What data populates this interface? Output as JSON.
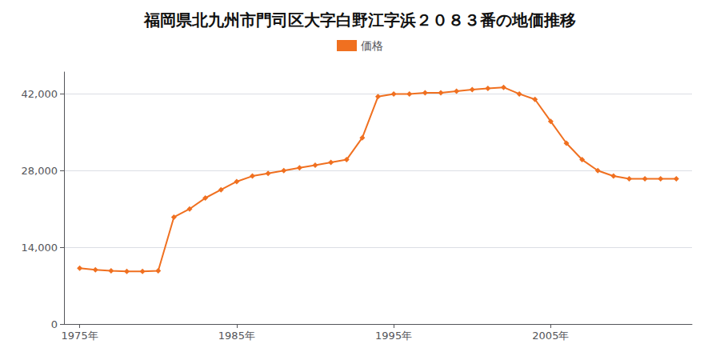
{
  "chart_data": {
    "type": "line",
    "title": "福岡県北九州市門司区大字白野江字浜２０８３番の地価推移",
    "x": [
      1975,
      1976,
      1977,
      1978,
      1979,
      1980,
      1981,
      1982,
      1983,
      1984,
      1985,
      1986,
      1987,
      1988,
      1989,
      1990,
      1991,
      1992,
      1993,
      1994,
      1995,
      1996,
      1997,
      1998,
      1999,
      2000,
      2001,
      2002,
      2003,
      2004,
      2005,
      2006,
      2007,
      2008,
      2009,
      2010,
      2011,
      2012,
      2013
    ],
    "series": [
      {
        "name": "価格",
        "color": "#f07020",
        "marker": "diamond",
        "values": [
          10200,
          9900,
          9700,
          9600,
          9600,
          9700,
          19500,
          21000,
          23000,
          24500,
          26000,
          27000,
          27500,
          28000,
          28500,
          29000,
          29500,
          30000,
          34000,
          41500,
          42000,
          42000,
          42200,
          42200,
          42500,
          42800,
          43000,
          43200,
          42000,
          41000,
          37000,
          33000,
          30000,
          28000,
          27000,
          26500,
          26500,
          26500,
          26500
        ]
      }
    ],
    "xlim": [
      1974,
      2014
    ],
    "xticks": [
      {
        "value": 1975,
        "label": "1975年"
      },
      {
        "value": 1985,
        "label": "1985年"
      },
      {
        "value": 1995,
        "label": "1995年"
      },
      {
        "value": 2005,
        "label": "2005年"
      }
    ],
    "ylim": [
      0,
      46000
    ],
    "yticks": [
      0,
      {
        "value": 14000,
        "label": "14,000"
      },
      {
        "value": 28000,
        "label": "28,000"
      },
      {
        "value": 42000,
        "label": "42,000"
      }
    ],
    "grid": true,
    "legend": "top"
  }
}
